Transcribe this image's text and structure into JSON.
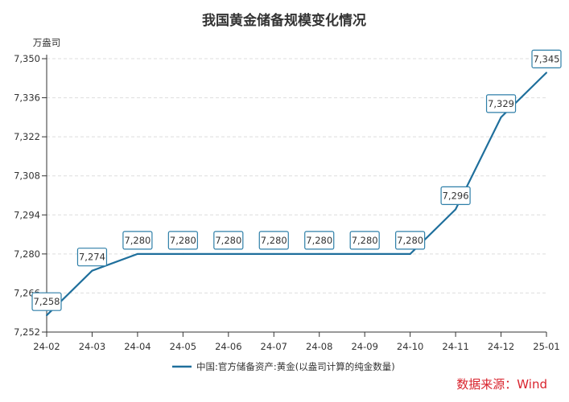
{
  "chart_data": {
    "type": "line",
    "title": "我国黄金储备规模变化情况",
    "ylabel": "万盎司",
    "xlabel": "",
    "categories": [
      "24-02",
      "24-03",
      "24-04",
      "24-05",
      "24-06",
      "24-07",
      "24-08",
      "24-09",
      "24-10",
      "24-11",
      "24-12",
      "25-01"
    ],
    "series": [
      {
        "name": "中国:官方储备资产:黄金(以盎司计算的纯金数量)",
        "values": [
          7258,
          7274,
          7280,
          7280,
          7280,
          7280,
          7280,
          7280,
          7280,
          7296,
          7329,
          7345
        ],
        "color": "#1f6f9c"
      }
    ],
    "ylim": [
      7252,
      7350
    ],
    "yticks": [
      7252,
      7266,
      7280,
      7294,
      7308,
      7322,
      7336,
      7350
    ],
    "ytick_labels": [
      "7,252",
      "7,266",
      "7,280",
      "7,294",
      "7,308",
      "7,322",
      "7,336",
      "7,350"
    ],
    "data_labels": [
      "7,258",
      "7,274",
      "7,280",
      "7,280",
      "7,280",
      "7,280",
      "7,280",
      "7,280",
      "7,280",
      "7,296",
      "7,329",
      "7,345"
    ],
    "grid": "horizontal dashed",
    "legend": "bottom"
  },
  "source": "数据来源：Wind",
  "source_color": "#d9232d"
}
